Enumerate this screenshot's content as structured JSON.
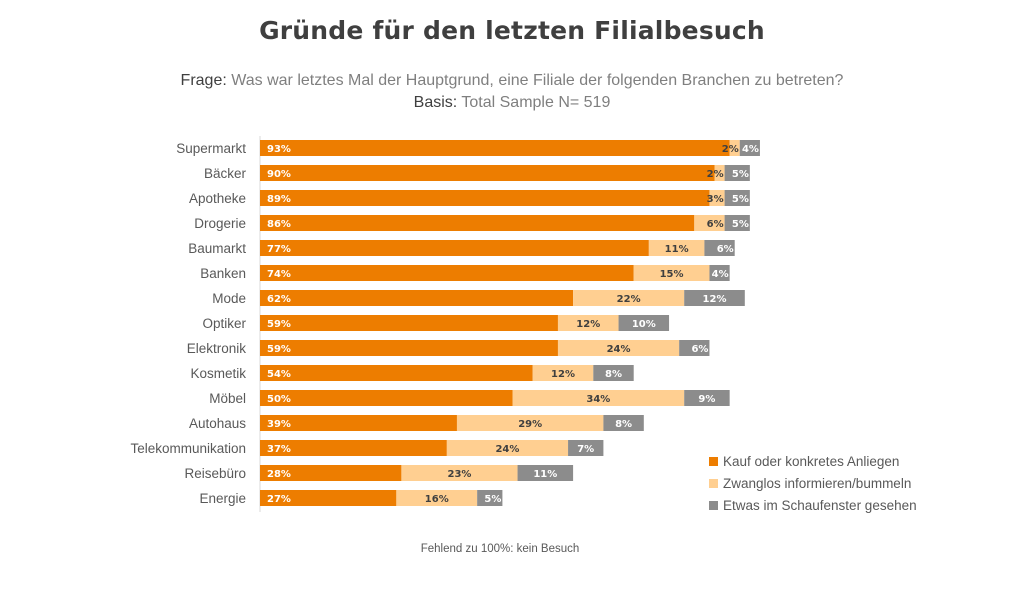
{
  "title": "Gründe für den letzten Filialbesuch",
  "question_label": "Frage:",
  "question_text": " Was war letztes Mal der Hauptgrund, eine Filiale der folgenden Branchen zu betreten?",
  "basis_label": "Basis:",
  "basis_text": " Total Sample N= 519",
  "footnote": "Fehlend zu 100%: kein Besuch",
  "colors": {
    "kauf": "#ED7D00",
    "zwanglos": "#FFCF91",
    "schaufenster": "#8C8C8C"
  },
  "chart_data": {
    "type": "bar",
    "orientation": "horizontal",
    "stacked": true,
    "categories": [
      "Supermarkt",
      "Bäcker",
      "Apotheke",
      "Drogerie",
      "Baumarkt",
      "Banken",
      "Mode",
      "Optiker",
      "Elektronik",
      "Kosmetik",
      "Möbel",
      "Autohaus",
      "Telekommunikation",
      "Reisebüro",
      "Energie"
    ],
    "series": [
      {
        "name": "Kauf oder konkretes Anliegen",
        "values": [
          93,
          90,
          89,
          86,
          77,
          74,
          62,
          59,
          59,
          54,
          50,
          39,
          37,
          28,
          27
        ]
      },
      {
        "name": "Zwanglos informieren/bummeln",
        "values": [
          2,
          2,
          3,
          6,
          11,
          15,
          22,
          12,
          24,
          12,
          34,
          29,
          24,
          23,
          16
        ]
      },
      {
        "name": "Etwas im Schaufenster gesehen",
        "values": [
          4,
          5,
          5,
          5,
          6,
          4,
          12,
          10,
          6,
          8,
          9,
          8,
          7,
          11,
          5
        ]
      }
    ],
    "value_suffix": "%",
    "legend_position": "bottom-right",
    "grid": false
  }
}
